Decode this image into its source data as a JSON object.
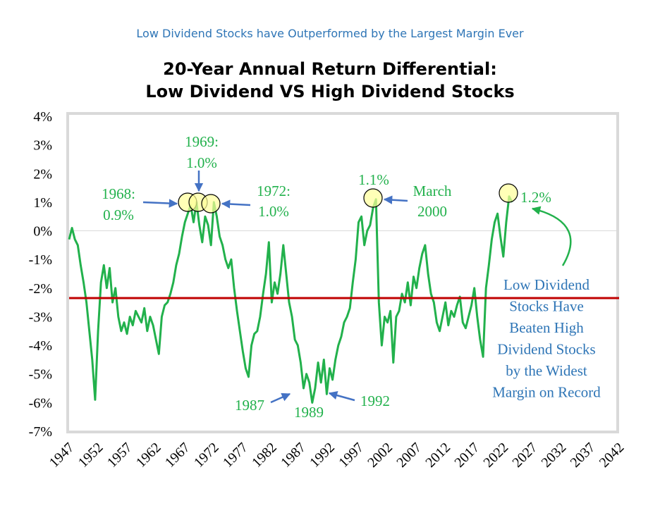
{
  "chart_data": {
    "type": "line",
    "subtitle": "Low Dividend Stocks have Outperformed by the Largest Margin Ever",
    "title": [
      "20-Year Annual Return Differential:",
      "Low Dividend VS High Dividend Stocks"
    ],
    "x": [
      1947,
      1947.5,
      1948,
      1948.5,
      1949,
      1949.5,
      1950,
      1950.5,
      1951,
      1951.5,
      1952,
      1952.5,
      1953,
      1953.5,
      1954,
      1954.5,
      1955,
      1955.5,
      1956,
      1956.5,
      1957,
      1957.5,
      1958,
      1958.5,
      1959,
      1959.5,
      1960,
      1960.5,
      1961,
      1961.5,
      1962,
      1962.5,
      1963,
      1963.5,
      1964,
      1964.5,
      1965,
      1965.5,
      1966,
      1966.5,
      1967,
      1967.5,
      1968,
      1968.5,
      1969,
      1969.5,
      1970,
      1970.5,
      1971,
      1971.5,
      1972,
      1972.5,
      1973,
      1973.5,
      1974,
      1974.5,
      1975,
      1975.5,
      1976,
      1976.5,
      1977,
      1977.5,
      1978,
      1978.5,
      1979,
      1979.5,
      1980,
      1980.5,
      1981,
      1981.5,
      1982,
      1982.5,
      1983,
      1983.5,
      1984,
      1984.5,
      1985,
      1985.5,
      1986,
      1986.5,
      1987,
      1987.5,
      1988,
      1988.5,
      1989,
      1989.5,
      1990,
      1990.5,
      1991,
      1991.5,
      1992,
      1992.5,
      1993,
      1993.5,
      1994,
      1994.5,
      1995,
      1995.5,
      1996,
      1996.5,
      1997,
      1997.5,
      1998,
      1998.5,
      1999,
      1999.5,
      2000,
      2000.5,
      2001,
      2001.5,
      2002,
      2002.5,
      2003,
      2003.5,
      2004,
      2004.5,
      2005,
      2005.5,
      2006,
      2006.5,
      2007,
      2007.5,
      2008,
      2008.5,
      2009,
      2009.5,
      2010,
      2010.5,
      2011,
      2011.5,
      2012,
      2012.5,
      2013,
      2013.5,
      2014,
      2014.5,
      2015,
      2015.5,
      2016,
      2016.5,
      2017,
      2017.5,
      2018,
      2018.5,
      2019,
      2019.5,
      2020,
      2020.5,
      2021,
      2021.5,
      2022,
      2022.5,
      2023,
      2023.5
    ],
    "series": [
      {
        "color": "#22b14c",
        "values": [
          -0.3,
          0.1,
          -0.3,
          -0.5,
          -1.2,
          -1.8,
          -2.5,
          -3.5,
          -4.5,
          -5.9,
          -3.5,
          -1.8,
          -1.2,
          -2.0,
          -1.3,
          -2.5,
          -2.0,
          -3.0,
          -3.5,
          -3.2,
          -3.6,
          -3.0,
          -3.3,
          -2.8,
          -3.0,
          -3.2,
          -2.7,
          -3.5,
          -3.0,
          -3.3,
          -3.8,
          -4.3,
          -3.0,
          -2.6,
          -2.5,
          -2.2,
          -1.8,
          -1.2,
          -0.8,
          -0.2,
          0.3,
          0.6,
          0.9,
          0.3,
          1.0,
          0.2,
          -0.4,
          0.5,
          0.2,
          -0.5,
          1.0,
          0.5,
          -0.2,
          -0.5,
          -1.0,
          -1.3,
          -1.0,
          -2.0,
          -2.8,
          -3.5,
          -4.2,
          -4.8,
          -5.1,
          -4.0,
          -3.6,
          -3.5,
          -3.0,
          -2.2,
          -1.5,
          -0.4,
          -2.5,
          -1.8,
          -2.2,
          -1.5,
          -0.5,
          -1.5,
          -2.5,
          -3.0,
          -3.8,
          -4.0,
          -4.6,
          -5.5,
          -5.0,
          -5.3,
          -6.0,
          -5.5,
          -4.6,
          -5.3,
          -4.5,
          -5.7,
          -4.8,
          -5.2,
          -4.5,
          -4.0,
          -3.7,
          -3.2,
          -3.0,
          -2.7,
          -1.8,
          -1.0,
          0.3,
          0.5,
          -0.5,
          0.0,
          0.2,
          0.8,
          1.1,
          -2.5,
          -4.0,
          -3.0,
          -3.2,
          -2.8,
          -4.6,
          -3.0,
          -2.8,
          -2.2,
          -2.5,
          -1.8,
          -2.6,
          -1.6,
          -2.0,
          -1.3,
          -0.8,
          -0.5,
          -1.5,
          -2.2,
          -2.5,
          -3.2,
          -3.5,
          -3.0,
          -2.5,
          -3.3,
          -2.8,
          -3.0,
          -2.6,
          -2.3,
          -3.2,
          -3.4,
          -3.0,
          -2.6,
          -2.0,
          -3.0,
          -3.8,
          -4.4,
          -2.0,
          -1.2,
          -0.3,
          0.3,
          0.6,
          -0.2,
          -0.9,
          0.3,
          1.2,
          1.0
        ]
      }
    ],
    "reference_line": {
      "value": -2.35,
      "color": "#c00000"
    },
    "zero_line": true,
    "xlim": [
      1947,
      2042
    ],
    "xticks": [
      1947,
      1952,
      1957,
      1962,
      1967,
      1972,
      1977,
      1982,
      1987,
      1992,
      1997,
      2002,
      2007,
      2012,
      2017,
      2022,
      2027,
      2032,
      2037,
      2042
    ],
    "ylim": [
      -7,
      4
    ],
    "yticks": [
      {
        "value": 4,
        "label": "4%"
      },
      {
        "value": 3,
        "label": "3%"
      },
      {
        "value": 2,
        "label": "2%"
      },
      {
        "value": 1,
        "label": "1%"
      },
      {
        "value": 0,
        "label": "0%"
      },
      {
        "value": -1,
        "label": "-1%"
      },
      {
        "value": -2,
        "label": "-2%"
      },
      {
        "value": -3,
        "label": "-3%"
      },
      {
        "value": -4,
        "label": "-4%"
      },
      {
        "value": -5,
        "label": "-5%"
      },
      {
        "value": -6,
        "label": "-6%"
      },
      {
        "value": -7,
        "label": "-7%"
      }
    ],
    "annotations": [
      {
        "lines": [
          "1968:",
          "0.9%"
        ]
      },
      {
        "lines": [
          "1969:",
          "1.0%"
        ]
      },
      {
        "lines": [
          "1972:",
          "1.0%"
        ]
      },
      {
        "lines": [
          "1.1%"
        ]
      },
      {
        "lines": [
          "March",
          "2000"
        ]
      },
      {
        "lines": [
          "1.2%"
        ]
      },
      {
        "lines": [
          "1987"
        ]
      },
      {
        "lines": [
          "1989"
        ]
      },
      {
        "lines": [
          "1992"
        ]
      },
      {
        "lines": [
          "Low Dividend",
          "Stocks Have",
          "Beaten High",
          "Dividend Stocks",
          "by the Widest",
          "Margin on Record"
        ]
      }
    ]
  }
}
